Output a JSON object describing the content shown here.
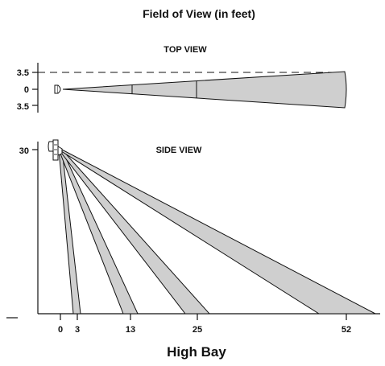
{
  "title": "Field of View (in feet)",
  "top_view": {
    "label": "TOP VIEW",
    "axis_labels": [
      "3.5",
      "0",
      "3.5"
    ]
  },
  "side_view": {
    "label": "SIDE VIEW",
    "axis_label": "30"
  },
  "x_axis_labels": [
    "0",
    "3",
    "13",
    "25",
    "52"
  ],
  "footer": "High Bay",
  "colors": {
    "fill": "#cfcfcf",
    "stroke": "#111111"
  }
}
